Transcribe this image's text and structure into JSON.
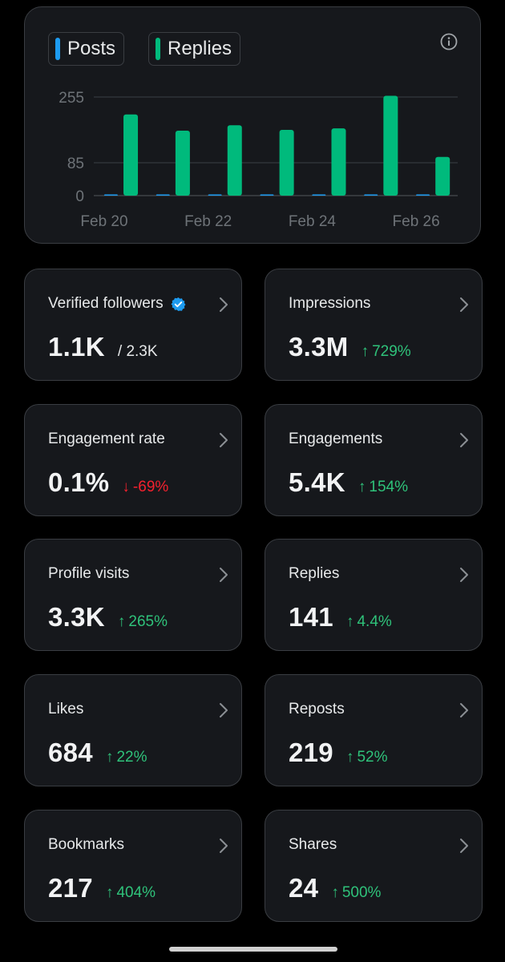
{
  "legend": {
    "posts_label": "Posts",
    "replies_label": "Replies",
    "posts_color": "#1d9bf0",
    "replies_color": "#00ba7c"
  },
  "chart_data": {
    "type": "bar",
    "categories": [
      "Feb 20",
      "Feb 21",
      "Feb 22",
      "Feb 23",
      "Feb 24",
      "Feb 25",
      "Feb 26"
    ],
    "x_tick_labels": [
      "Feb 20",
      "Feb 22",
      "Feb 24",
      "Feb 26"
    ],
    "y_ticks": [
      0,
      85,
      255
    ],
    "ylim": [
      0,
      255
    ],
    "grid": true,
    "legend_position": "top-left",
    "series": [
      {
        "name": "Posts",
        "color": "#1d9bf0",
        "values": [
          1,
          1,
          2,
          1,
          1,
          1,
          1
        ]
      },
      {
        "name": "Replies",
        "color": "#00ba7c",
        "values": [
          210,
          168,
          182,
          170,
          174,
          258,
          100
        ]
      }
    ]
  },
  "stats": [
    {
      "label": "Verified followers",
      "value": "1.1K",
      "sub": "/ 2.3K",
      "verified": true
    },
    {
      "label": "Impressions",
      "value": "3.3M",
      "arrow": "↑",
      "change": "729%",
      "direction": "up"
    },
    {
      "label": "Engagement rate",
      "value": "0.1%",
      "arrow": "↓",
      "change": "-69%",
      "direction": "down"
    },
    {
      "label": "Engagements",
      "value": "5.4K",
      "arrow": "↑",
      "change": "154%",
      "direction": "up"
    },
    {
      "label": "Profile visits",
      "value": "3.3K",
      "arrow": "↑",
      "change": "265%",
      "direction": "up"
    },
    {
      "label": "Replies",
      "value": "141",
      "arrow": "↑",
      "change": "4.4%",
      "direction": "up"
    },
    {
      "label": "Likes",
      "value": "684",
      "arrow": "↑",
      "change": "22%",
      "direction": "up"
    },
    {
      "label": "Reposts",
      "value": "219",
      "arrow": "↑",
      "change": "52%",
      "direction": "up"
    },
    {
      "label": "Bookmarks",
      "value": "217",
      "arrow": "↑",
      "change": "404%",
      "direction": "up"
    },
    {
      "label": "Shares",
      "value": "24",
      "arrow": "↑",
      "change": "500%",
      "direction": "up"
    }
  ],
  "icons": {
    "info": "info-icon",
    "chevron": "chevron-right-icon",
    "verified": "verified-badge-icon"
  }
}
